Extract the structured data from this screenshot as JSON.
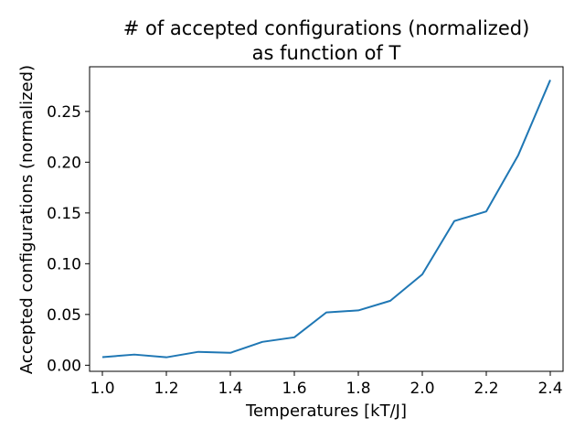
{
  "chart_data": {
    "type": "line",
    "title_lines": [
      "# of accepted configurations (normalized)",
      "as function of T"
    ],
    "xlabel": "Temperatures [kT/J]",
    "ylabel": "Accepted configurations (normalized)",
    "xlim": [
      0.96,
      2.44
    ],
    "ylim": [
      -0.006,
      0.294
    ],
    "xticks": [
      1.0,
      1.2,
      1.4,
      1.6,
      1.8,
      2.0,
      2.2,
      2.4
    ],
    "xtick_labels": [
      "1.0",
      "1.2",
      "1.4",
      "1.6",
      "1.8",
      "2.0",
      "2.2",
      "2.4"
    ],
    "yticks": [
      0.0,
      0.05,
      0.1,
      0.15,
      0.2,
      0.25
    ],
    "ytick_labels": [
      "0.00",
      "0.05",
      "0.10",
      "0.15",
      "0.20",
      "0.25"
    ],
    "grid": false,
    "series": [
      {
        "color": "#1f77b4",
        "x": [
          1.0,
          1.1,
          1.2,
          1.3,
          1.4,
          1.5,
          1.6,
          1.7,
          1.8,
          1.9,
          2.0,
          2.1,
          2.2,
          2.3,
          2.4
        ],
        "values": [
          0.008,
          0.0105,
          0.0078,
          0.0132,
          0.0122,
          0.023,
          0.0275,
          0.052,
          0.054,
          0.0635,
          0.0895,
          0.142,
          0.1515,
          0.207,
          0.281
        ]
      }
    ]
  }
}
